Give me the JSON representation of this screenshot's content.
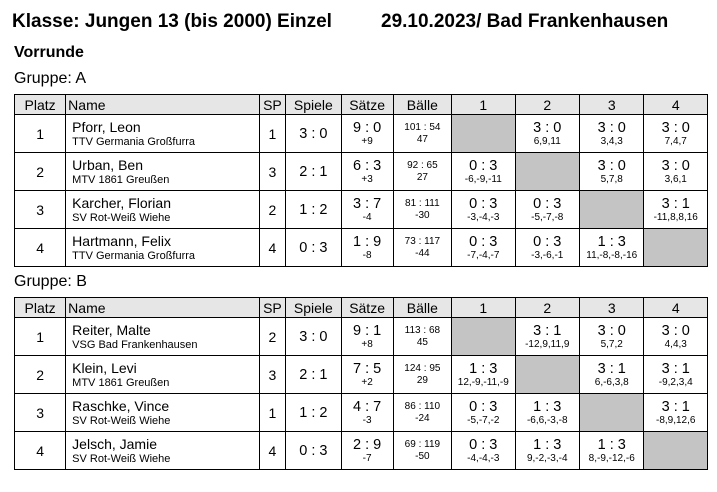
{
  "header": {
    "title": "Klasse: Jungen 13 (bis 2000) Einzel",
    "date_location": "29.10.2023/  Bad Frankenhausen"
  },
  "round": "Vorrunde",
  "columns": [
    "Platz",
    "Name",
    "SP",
    "Spiele",
    "Sätze",
    "Bälle",
    "1",
    "2",
    "3",
    "4"
  ],
  "groups": [
    {
      "label": "Gruppe: A",
      "rows": [
        {
          "platz": "1",
          "name": "Pforr, Leon",
          "club": "TTV Germania Großfurra",
          "sp": "1",
          "spiele": "3 : 0",
          "saetze": "9 : 0",
          "saetze_diff": "+9",
          "baelle": "101 : 54",
          "baelle_diff": "47",
          "results": [
            null,
            {
              "score": "3 : 0",
              "sets": "6,9,11"
            },
            {
              "score": "3 : 0",
              "sets": "3,4,3"
            },
            {
              "score": "3 : 0",
              "sets": "7,4,7"
            }
          ]
        },
        {
          "platz": "2",
          "name": "Urban, Ben",
          "club": "MTV 1861 Greußen",
          "sp": "3",
          "spiele": "2 : 1",
          "saetze": "6 : 3",
          "saetze_diff": "+3",
          "baelle": "92 : 65",
          "baelle_diff": "27",
          "results": [
            {
              "score": "0 : 3",
              "sets": "-6,-9,-11"
            },
            null,
            {
              "score": "3 : 0",
              "sets": "5,7,8"
            },
            {
              "score": "3 : 0",
              "sets": "3,6,1"
            }
          ]
        },
        {
          "platz": "3",
          "name": "Karcher, Florian",
          "club": "SV Rot-Weiß Wiehe",
          "sp": "2",
          "spiele": "1 : 2",
          "saetze": "3 : 7",
          "saetze_diff": "-4",
          "baelle": "81 : 111",
          "baelle_diff": "-30",
          "results": [
            {
              "score": "0 : 3",
              "sets": "-3,-4,-3"
            },
            {
              "score": "0 : 3",
              "sets": "-5,-7,-8"
            },
            null,
            {
              "score": "3 : 1",
              "sets": "-11,8,8,16"
            }
          ]
        },
        {
          "platz": "4",
          "name": "Hartmann, Felix",
          "club": "TTV Germania Großfurra",
          "sp": "4",
          "spiele": "0 : 3",
          "saetze": "1 : 9",
          "saetze_diff": "-8",
          "baelle": "73 : 117",
          "baelle_diff": "-44",
          "results": [
            {
              "score": "0 : 3",
              "sets": "-7,-4,-7"
            },
            {
              "score": "0 : 3",
              "sets": "-3,-6,-1"
            },
            {
              "score": "1 : 3",
              "sets": "11,-8,-8,-16"
            },
            null
          ]
        }
      ]
    },
    {
      "label": "Gruppe: B",
      "rows": [
        {
          "platz": "1",
          "name": "Reiter, Malte",
          "club": "VSG Bad Frankenhausen",
          "sp": "2",
          "spiele": "3 : 0",
          "saetze": "9 : 1",
          "saetze_diff": "+8",
          "baelle": "113 : 68",
          "baelle_diff": "45",
          "results": [
            null,
            {
              "score": "3 : 1",
              "sets": "-12,9,11,9"
            },
            {
              "score": "3 : 0",
              "sets": "5,7,2"
            },
            {
              "score": "3 : 0",
              "sets": "4,4,3"
            }
          ]
        },
        {
          "platz": "2",
          "name": "Klein, Levi",
          "club": "MTV 1861 Greußen",
          "sp": "3",
          "spiele": "2 : 1",
          "saetze": "7 : 5",
          "saetze_diff": "+2",
          "baelle": "124 : 95",
          "baelle_diff": "29",
          "results": [
            {
              "score": "1 : 3",
              "sets": "12,-9,-11,-9"
            },
            null,
            {
              "score": "3 : 1",
              "sets": "6,-6,3,8"
            },
            {
              "score": "3 : 1",
              "sets": "-9,2,3,4"
            }
          ]
        },
        {
          "platz": "3",
          "name": "Raschke, Vince",
          "club": "SV Rot-Weiß Wiehe",
          "sp": "1",
          "spiele": "1 : 2",
          "saetze": "4 : 7",
          "saetze_diff": "-3",
          "baelle": "86 : 110",
          "baelle_diff": "-24",
          "results": [
            {
              "score": "0 : 3",
              "sets": "-5,-7,-2"
            },
            {
              "score": "1 : 3",
              "sets": "-6,6,-3,-8"
            },
            null,
            {
              "score": "3 : 1",
              "sets": "-8,9,12,6"
            }
          ]
        },
        {
          "platz": "4",
          "name": "Jelsch, Jamie",
          "club": "SV Rot-Weiß Wiehe",
          "sp": "4",
          "spiele": "0 : 3",
          "saetze": "2 : 9",
          "saetze_diff": "-7",
          "baelle": "69 : 119",
          "baelle_diff": "-50",
          "results": [
            {
              "score": "0 : 3",
              "sets": "-4,-4,-3"
            },
            {
              "score": "1 : 3",
              "sets": "9,-2,-3,-4"
            },
            {
              "score": "1 : 3",
              "sets": "8,-9,-12,-6"
            },
            null
          ]
        }
      ]
    }
  ]
}
